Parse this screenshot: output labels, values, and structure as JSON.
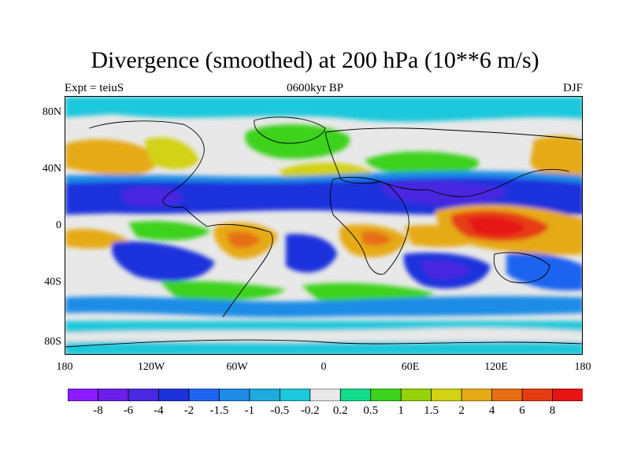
{
  "chart_data": {
    "type": "heatmap",
    "title": "Divergence (smoothed) at 200 hPa (10**6 m/s)",
    "left_label": "Expt = teiuS",
    "center_label": "0600kyr BP",
    "right_label": "DJF",
    "x_ticks": [
      "180",
      "120W",
      "60W",
      "0",
      "60E",
      "120E",
      "180"
    ],
    "y_ticks": [
      "80N",
      "40N",
      "0",
      "40S",
      "80S"
    ],
    "xlim": [
      -180,
      180
    ],
    "ylim": [
      -90,
      90
    ],
    "colorbar_levels": [
      "-8",
      "-6",
      "-4",
      "-2",
      "-1.5",
      "-1",
      "-0.5",
      "-0.2",
      "0.2",
      "0.5",
      "1",
      "1.5",
      "2",
      "4",
      "6",
      "8"
    ],
    "colorbar_colors": [
      "#8c1aff",
      "#6a1ee8",
      "#4a28e0",
      "#1e32dc",
      "#1e64f0",
      "#1e8ce6",
      "#1eaadc",
      "#1ec8dc",
      "#e8e8e8",
      "#14dc8c",
      "#3cd21e",
      "#96d20a",
      "#d2d214",
      "#e6aa14",
      "#e66e14",
      "#e63c14",
      "#e61414"
    ],
    "field": [
      {
        "lon": 0,
        "lat": 20,
        "value": -4
      },
      {
        "lon": 100,
        "lat": -5,
        "value": 8
      },
      {
        "lon": -60,
        "lat": -15,
        "value": 4
      },
      {
        "lon": 30,
        "lat": -15,
        "value": 4
      },
      {
        "lon": 60,
        "lat": -35,
        "value": -4
      },
      {
        "lon": -110,
        "lat": -30,
        "value": -4
      },
      {
        "lon": -150,
        "lat": 35,
        "value": 4
      }
    ]
  }
}
